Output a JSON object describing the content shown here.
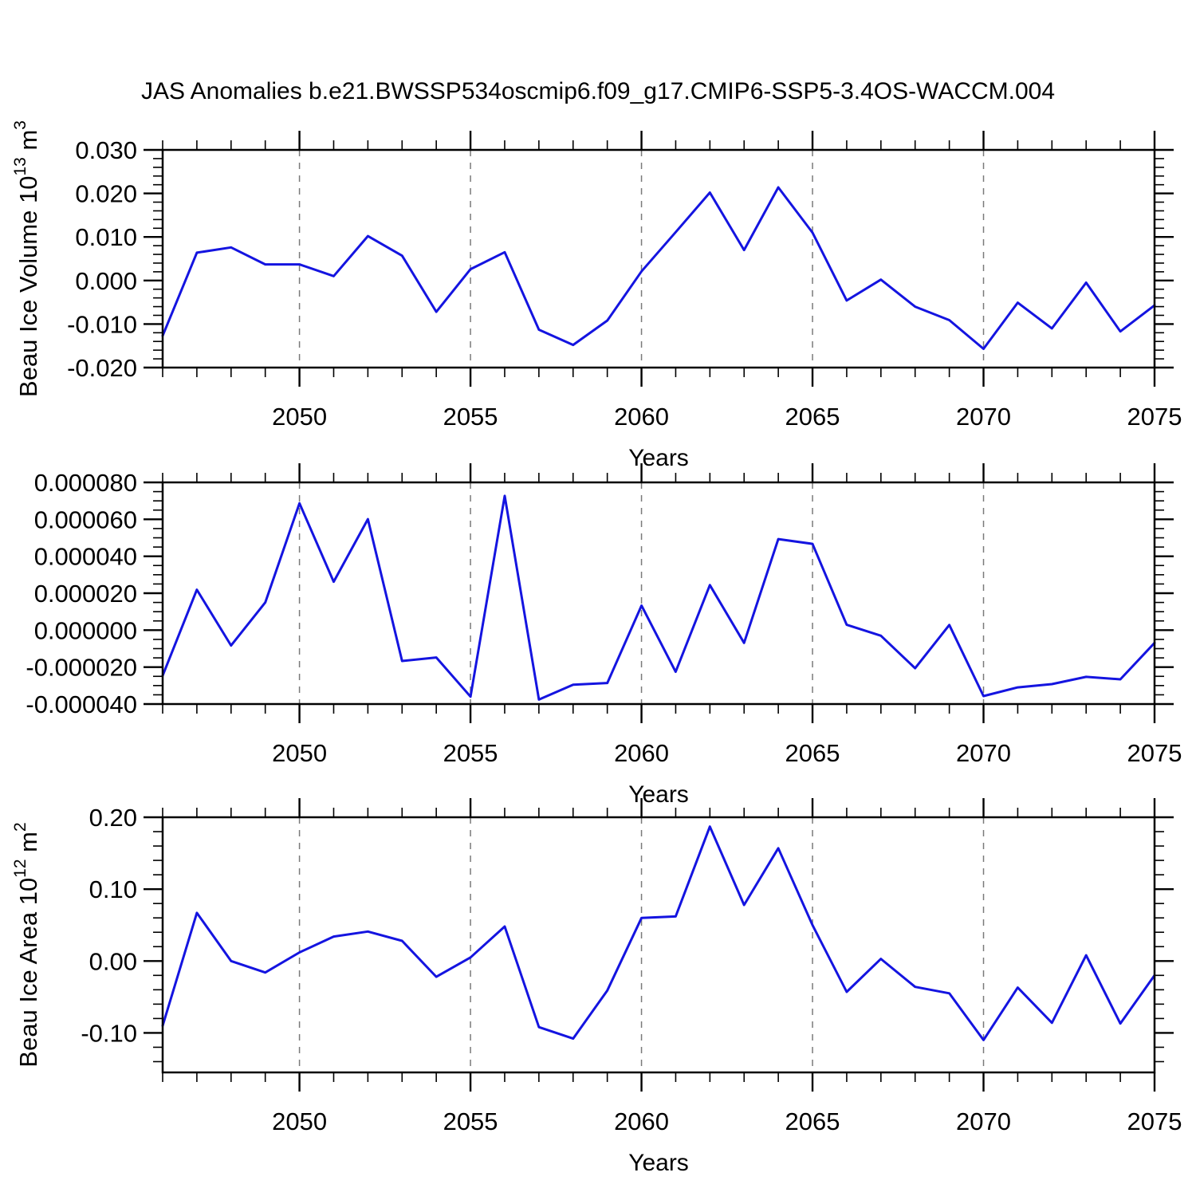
{
  "title": "JAS Anomalies b.e21.BWSSP534oscmip6.f09_g17.CMIP6-SSP5-3.4OS-WACCM.004",
  "colors": {
    "line": "#1414e0",
    "grid": "#7a7a7a",
    "axis": "#000000",
    "text": "#000000"
  },
  "chart_data": [
    {
      "type": "line",
      "name": "beau-ice-volume",
      "ylabel": "Beau Ice Volume 10^13^ m^3^",
      "xlabel": "Years",
      "ylim": [
        -0.02,
        0.03
      ],
      "yticks": [
        {
          "v": 0.03,
          "label": "0.030"
        },
        {
          "v": 0.02,
          "label": "0.020"
        },
        {
          "v": 0.01,
          "label": "0.010"
        },
        {
          "v": 0.0,
          "label": "0.000"
        },
        {
          "v": -0.01,
          "label": "-0.010"
        },
        {
          "v": -0.02,
          "label": "-0.020"
        }
      ],
      "y_minor_step": 0.002,
      "xlim": [
        2046,
        2075
      ],
      "xticks": [
        {
          "v": 2050,
          "label": "2050"
        },
        {
          "v": 2055,
          "label": "2055"
        },
        {
          "v": 2060,
          "label": "2060"
        },
        {
          "v": 2065,
          "label": "2065"
        },
        {
          "v": 2070,
          "label": "2070"
        },
        {
          "v": 2075,
          "label": "2075"
        }
      ],
      "x_minor_step": 1,
      "grid_x": [
        2050,
        2055,
        2060,
        2065,
        2070
      ],
      "years": [
        2046,
        2047,
        2048,
        2049,
        2050,
        2051,
        2052,
        2053,
        2054,
        2055,
        2056,
        2057,
        2058,
        2059,
        2060,
        2061,
        2062,
        2063,
        2064,
        2065,
        2066,
        2067,
        2068,
        2069,
        2070,
        2071,
        2072,
        2073,
        2074,
        2075
      ],
      "values": [
        -0.0127,
        0.0064,
        0.0076,
        0.0037,
        0.0037,
        0.001,
        0.0102,
        0.0057,
        -0.0072,
        0.0026,
        0.0065,
        -0.0113,
        -0.0148,
        -0.0092,
        0.0021,
        0.0111,
        0.0202,
        0.007,
        0.0214,
        0.011,
        -0.0046,
        0.0002,
        -0.006,
        -0.0091,
        -0.0157,
        -0.0051,
        -0.011,
        -0.0005,
        -0.0117,
        -0.0057
      ]
    },
    {
      "type": "line",
      "name": "beau-ice-anomaly-unlabeled",
      "ylabel": "",
      "xlabel": "Years",
      "ylim": [
        -4e-05,
        8e-05
      ],
      "yticks": [
        {
          "v": 8e-05,
          "label": "0.000080"
        },
        {
          "v": 6e-05,
          "label": "0.000060"
        },
        {
          "v": 4e-05,
          "label": "0.000040"
        },
        {
          "v": 2e-05,
          "label": "0.000020"
        },
        {
          "v": 0.0,
          "label": "0.000000"
        },
        {
          "v": -2e-05,
          "label": "-0.000020"
        },
        {
          "v": -4e-05,
          "label": "-0.000040"
        }
      ],
      "y_minor_step": 5e-06,
      "xlim": [
        2046,
        2075
      ],
      "xticks": [
        {
          "v": 2050,
          "label": "2050"
        },
        {
          "v": 2055,
          "label": "2055"
        },
        {
          "v": 2060,
          "label": "2060"
        },
        {
          "v": 2065,
          "label": "2065"
        },
        {
          "v": 2070,
          "label": "2070"
        },
        {
          "v": 2075,
          "label": "2075"
        }
      ],
      "x_minor_step": 1,
      "grid_x": [
        2050,
        2055,
        2060,
        2065,
        2070
      ],
      "years": [
        2046,
        2047,
        2048,
        2049,
        2050,
        2051,
        2052,
        2053,
        2054,
        2055,
        2056,
        2057,
        2058,
        2059,
        2060,
        2061,
        2062,
        2063,
        2064,
        2065,
        2066,
        2067,
        2068,
        2069,
        2070,
        2071,
        2072,
        2073,
        2074,
        2075
      ],
      "values": [
        -2.46e-05,
        2.19e-05,
        -8.3e-06,
        1.5e-05,
        6.87e-05,
        2.62e-05,
        6.01e-05,
        -1.67e-05,
        -1.48e-05,
        -3.6e-05,
        7.27e-05,
        -3.76e-05,
        -2.95e-05,
        -2.86e-05,
        1.33e-05,
        -2.25e-05,
        2.44e-05,
        -6.9e-06,
        4.93e-05,
        4.67e-05,
        2.9e-06,
        -3e-06,
        -2.06e-05,
        2.8e-06,
        -3.57e-05,
        -3.1e-05,
        -2.92e-05,
        -2.53e-05,
        -2.66e-05,
        -6.9e-06
      ]
    },
    {
      "type": "line",
      "name": "beau-ice-area",
      "ylabel": "Beau Ice Area 10^12^ m^2^",
      "xlabel": "Years",
      "ylim": [
        -0.155,
        0.2
      ],
      "yticks": [
        {
          "v": 0.2,
          "label": "0.20"
        },
        {
          "v": 0.1,
          "label": "0.10"
        },
        {
          "v": 0.0,
          "label": "0.00"
        },
        {
          "v": -0.1,
          "label": "-0.10"
        }
      ],
      "y_minor_step": 0.02,
      "xlim": [
        2046,
        2075
      ],
      "xticks": [
        {
          "v": 2050,
          "label": "2050"
        },
        {
          "v": 2055,
          "label": "2055"
        },
        {
          "v": 2060,
          "label": "2060"
        },
        {
          "v": 2065,
          "label": "2065"
        },
        {
          "v": 2070,
          "label": "2070"
        },
        {
          "v": 2075,
          "label": "2075"
        }
      ],
      "x_minor_step": 1,
      "grid_x": [
        2050,
        2055,
        2060,
        2065,
        2070
      ],
      "years": [
        2046,
        2047,
        2048,
        2049,
        2050,
        2051,
        2052,
        2053,
        2054,
        2055,
        2056,
        2057,
        2058,
        2059,
        2060,
        2061,
        2062,
        2063,
        2064,
        2065,
        2066,
        2067,
        2068,
        2069,
        2070,
        2071,
        2072,
        2073,
        2074,
        2075
      ],
      "values": [
        -0.09,
        0.067,
        0.0,
        -0.016,
        0.012,
        0.034,
        0.041,
        0.028,
        -0.022,
        0.005,
        0.048,
        -0.092,
        -0.108,
        -0.041,
        0.06,
        0.062,
        0.187,
        0.078,
        0.157,
        0.05,
        -0.043,
        0.003,
        -0.036,
        -0.045,
        -0.11,
        -0.037,
        -0.086,
        0.008,
        -0.087,
        -0.02
      ]
    }
  ]
}
